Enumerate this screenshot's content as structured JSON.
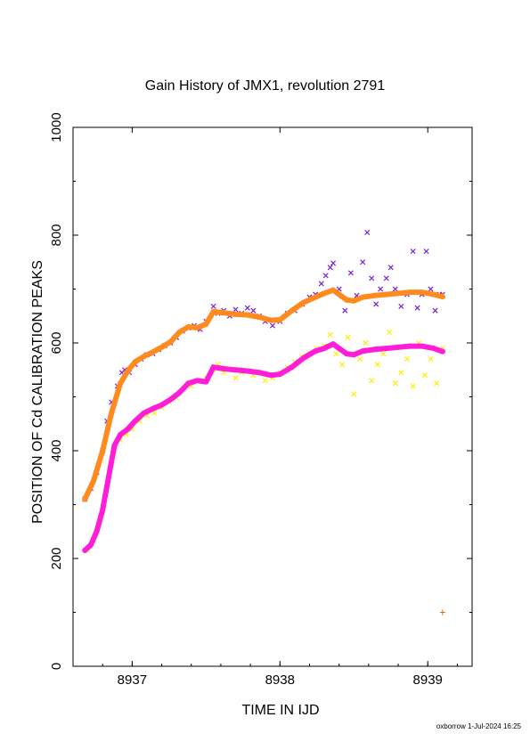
{
  "chart_data": {
    "type": "scatter",
    "title": "Gain History of JMX1, revolution 2791",
    "xlabel": "TIME IN IJD",
    "ylabel": "POSITION OF Cd CALIBRATION PEAKS",
    "xlim": [
      8936.6,
      8939.3
    ],
    "ylim": [
      0,
      1000
    ],
    "x_ticks": [
      8937,
      8938,
      8939
    ],
    "y_ticks": [
      0,
      200,
      400,
      600,
      800,
      1000
    ],
    "grid": false,
    "legend": "none",
    "series": [
      {
        "color": "#7b1fd8",
        "marker": "x",
        "points": [
          [
            8936.68,
            310
          ],
          [
            8936.72,
            330
          ],
          [
            8936.76,
            360
          ],
          [
            8936.8,
            400
          ],
          [
            8936.83,
            455
          ],
          [
            8936.86,
            490
          ],
          [
            8936.9,
            520
          ],
          [
            8936.93,
            545
          ],
          [
            8936.95,
            550
          ],
          [
            8936.98,
            545
          ],
          [
            8937.02,
            560
          ],
          [
            8937.06,
            570
          ],
          [
            8937.1,
            578
          ],
          [
            8937.14,
            580
          ],
          [
            8937.18,
            588
          ],
          [
            8937.22,
            595
          ],
          [
            8937.26,
            600
          ],
          [
            8937.3,
            610
          ],
          [
            8937.34,
            622
          ],
          [
            8937.38,
            628
          ],
          [
            8937.42,
            632
          ],
          [
            8937.46,
            625
          ],
          [
            8937.5,
            640
          ],
          [
            8937.55,
            668
          ],
          [
            8937.58,
            655
          ],
          [
            8937.62,
            660
          ],
          [
            8937.66,
            650
          ],
          [
            8937.7,
            662
          ],
          [
            8937.74,
            655
          ],
          [
            8937.78,
            665
          ],
          [
            8937.82,
            660
          ],
          [
            8937.86,
            650
          ],
          [
            8937.9,
            640
          ],
          [
            8937.95,
            632
          ],
          [
            8938.0,
            640
          ],
          [
            8938.05,
            655
          ],
          [
            8938.1,
            660
          ],
          [
            8938.15,
            672
          ],
          [
            8938.2,
            685
          ],
          [
            8938.24,
            690
          ],
          [
            8938.28,
            710
          ],
          [
            8938.31,
            725
          ],
          [
            8938.34,
            740
          ],
          [
            8938.36,
            748
          ],
          [
            8938.4,
            700
          ],
          [
            8938.44,
            660
          ],
          [
            8938.48,
            730
          ],
          [
            8938.52,
            688
          ],
          [
            8938.56,
            750
          ],
          [
            8938.59,
            805
          ],
          [
            8938.62,
            720
          ],
          [
            8938.65,
            672
          ],
          [
            8938.68,
            700
          ],
          [
            8938.72,
            720
          ],
          [
            8938.75,
            740
          ],
          [
            8938.78,
            700
          ],
          [
            8938.82,
            668
          ],
          [
            8938.86,
            690
          ],
          [
            8938.9,
            770
          ],
          [
            8938.93,
            665
          ],
          [
            8938.96,
            690
          ],
          [
            8938.99,
            770
          ],
          [
            8939.02,
            700
          ],
          [
            8939.05,
            660
          ],
          [
            8939.08,
            690
          ],
          [
            8939.1,
            690
          ]
        ]
      },
      {
        "color": "#ff8a1e",
        "marker": "line-dense",
        "points": [
          [
            8936.68,
            310
          ],
          [
            8936.74,
            345
          ],
          [
            8936.8,
            400
          ],
          [
            8936.86,
            470
          ],
          [
            8936.92,
            525
          ],
          [
            8936.97,
            548
          ],
          [
            8937.02,
            565
          ],
          [
            8937.08,
            575
          ],
          [
            8937.14,
            583
          ],
          [
            8937.2,
            592
          ],
          [
            8937.26,
            602
          ],
          [
            8937.32,
            620
          ],
          [
            8937.38,
            630
          ],
          [
            8937.44,
            628
          ],
          [
            8937.5,
            635
          ],
          [
            8937.55,
            658
          ],
          [
            8937.62,
            656
          ],
          [
            8937.7,
            653
          ],
          [
            8937.78,
            652
          ],
          [
            8937.86,
            648
          ],
          [
            8937.94,
            642
          ],
          [
            8938.0,
            643
          ],
          [
            8938.08,
            660
          ],
          [
            8938.16,
            675
          ],
          [
            8938.24,
            685
          ],
          [
            8938.3,
            692
          ],
          [
            8938.36,
            698
          ],
          [
            8938.4,
            690
          ],
          [
            8938.45,
            680
          ],
          [
            8938.5,
            678
          ],
          [
            8938.56,
            685
          ],
          [
            8938.64,
            688
          ],
          [
            8938.72,
            690
          ],
          [
            8938.8,
            692
          ],
          [
            8938.88,
            694
          ],
          [
            8938.96,
            694
          ],
          [
            8939.04,
            690
          ],
          [
            8939.1,
            686
          ]
        ]
      },
      {
        "color": "#ffee00",
        "marker": "x",
        "points": [
          [
            8936.7,
            215
          ],
          [
            8936.76,
            250
          ],
          [
            8936.82,
            320
          ],
          [
            8936.88,
            400
          ],
          [
            8936.92,
            420
          ],
          [
            8936.96,
            430
          ],
          [
            8937.0,
            440
          ],
          [
            8937.05,
            455
          ],
          [
            8937.1,
            465
          ],
          [
            8937.15,
            470
          ],
          [
            8937.2,
            480
          ],
          [
            8937.25,
            490
          ],
          [
            8937.3,
            498
          ],
          [
            8937.35,
            515
          ],
          [
            8937.4,
            520
          ],
          [
            8937.45,
            530
          ],
          [
            8937.5,
            535
          ],
          [
            8937.55,
            550
          ],
          [
            8937.58,
            560
          ],
          [
            8937.62,
            545
          ],
          [
            8937.66,
            550
          ],
          [
            8937.7,
            535
          ],
          [
            8937.74,
            545
          ],
          [
            8937.78,
            548
          ],
          [
            8937.82,
            540
          ],
          [
            8937.86,
            545
          ],
          [
            8937.9,
            530
          ],
          [
            8937.95,
            535
          ],
          [
            8938.0,
            545
          ],
          [
            8938.05,
            555
          ],
          [
            8938.1,
            565
          ],
          [
            8938.15,
            575
          ],
          [
            8938.2,
            580
          ],
          [
            8938.25,
            590
          ],
          [
            8938.3,
            595
          ],
          [
            8938.34,
            615
          ],
          [
            8938.38,
            580
          ],
          [
            8938.42,
            560
          ],
          [
            8938.46,
            610
          ],
          [
            8938.5,
            505
          ],
          [
            8938.54,
            570
          ],
          [
            8938.58,
            600
          ],
          [
            8938.62,
            530
          ],
          [
            8938.66,
            560
          ],
          [
            8938.7,
            580
          ],
          [
            8938.74,
            620
          ],
          [
            8938.78,
            525
          ],
          [
            8938.82,
            545
          ],
          [
            8938.86,
            570
          ],
          [
            8938.9,
            520
          ],
          [
            8938.94,
            600
          ],
          [
            8938.98,
            540
          ],
          [
            8939.02,
            570
          ],
          [
            8939.06,
            525
          ],
          [
            8939.1,
            590
          ]
        ]
      },
      {
        "color": "#ff1ed8",
        "marker": "line-dense",
        "points": [
          [
            8936.68,
            215
          ],
          [
            8936.72,
            225
          ],
          [
            8936.76,
            250
          ],
          [
            8936.8,
            290
          ],
          [
            8936.84,
            350
          ],
          [
            8936.88,
            410
          ],
          [
            8936.92,
            430
          ],
          [
            8936.97,
            440
          ],
          [
            8937.02,
            455
          ],
          [
            8937.08,
            470
          ],
          [
            8937.14,
            478
          ],
          [
            8937.2,
            485
          ],
          [
            8937.26,
            495
          ],
          [
            8937.32,
            508
          ],
          [
            8937.38,
            525
          ],
          [
            8937.44,
            530
          ],
          [
            8937.5,
            528
          ],
          [
            8937.55,
            555
          ],
          [
            8937.62,
            552
          ],
          [
            8937.7,
            550
          ],
          [
            8937.78,
            548
          ],
          [
            8937.86,
            545
          ],
          [
            8937.94,
            540
          ],
          [
            8938.0,
            542
          ],
          [
            8938.08,
            555
          ],
          [
            8938.16,
            572
          ],
          [
            8938.24,
            585
          ],
          [
            8938.3,
            590
          ],
          [
            8938.36,
            598
          ],
          [
            8938.4,
            590
          ],
          [
            8938.45,
            580
          ],
          [
            8938.5,
            578
          ],
          [
            8938.56,
            585
          ],
          [
            8938.64,
            588
          ],
          [
            8938.72,
            590
          ],
          [
            8938.8,
            592
          ],
          [
            8938.88,
            594
          ],
          [
            8938.96,
            594
          ],
          [
            8939.04,
            590
          ],
          [
            8939.1,
            584
          ]
        ]
      },
      {
        "color": "#e07010",
        "marker": "+",
        "points": [
          [
            8939.1,
            100
          ]
        ]
      }
    ]
  },
  "footer": "oxborrow   1-Jul-2024 16:25"
}
